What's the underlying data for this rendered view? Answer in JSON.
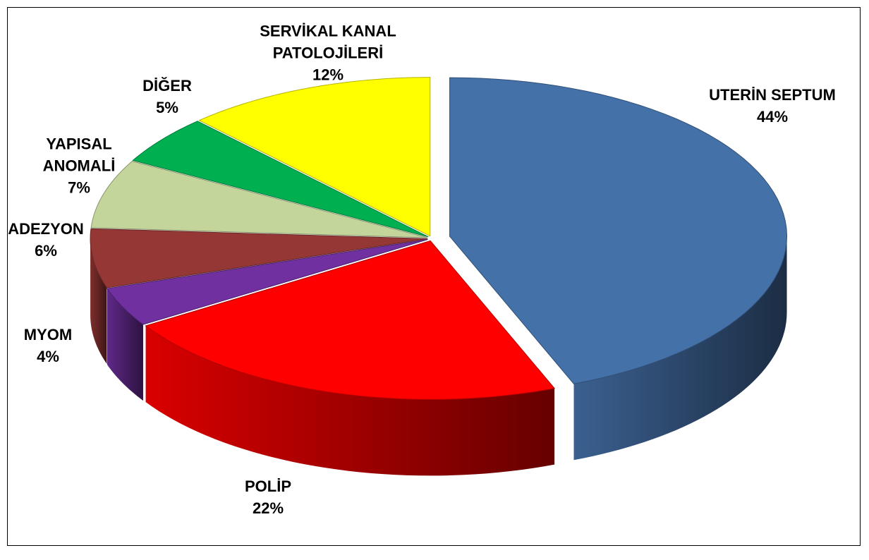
{
  "chart_data": {
    "type": "pie",
    "categories": [
      "UTERİN SEPTUM",
      "POLİP",
      "MYOM",
      "ADEZYON",
      "YAPISAL ANOMALİ",
      "DİĞER",
      "SERVİKAL KANAL PATOLOJİLERİ"
    ],
    "values": [
      44,
      22,
      4,
      6,
      7,
      5,
      12
    ],
    "value_labels": [
      "44%",
      "22%",
      "4%",
      "6%",
      "7%",
      "5%",
      "12%"
    ],
    "colors": [
      "#4571a9",
      "#ff0000",
      "#7030a0",
      "#953735",
      "#c4d59b",
      "#00b050",
      "#ffff00"
    ]
  }
}
